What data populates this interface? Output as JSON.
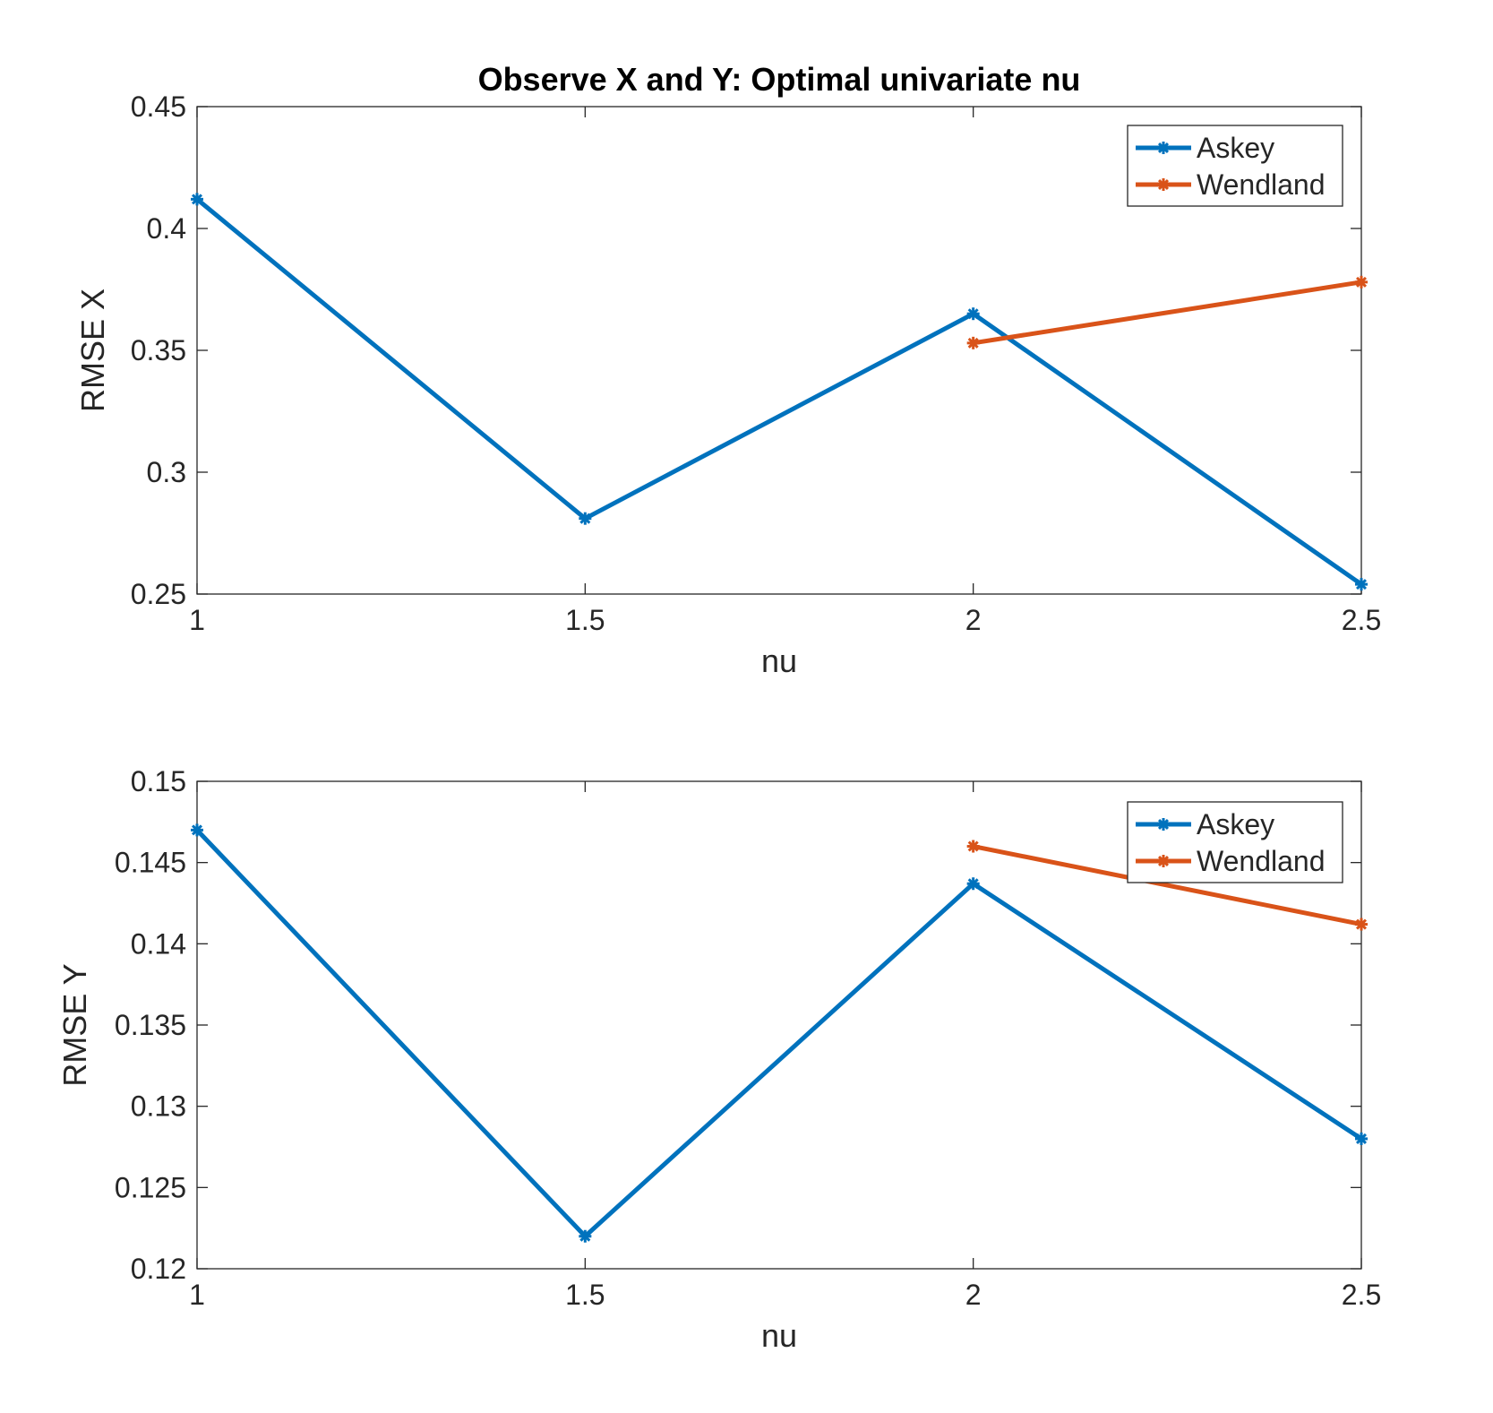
{
  "chart_data": [
    {
      "type": "line",
      "title": "Observe X and Y: Optimal univariate nu",
      "xlabel": "nu",
      "ylabel": "RMSE X",
      "xlim": [
        1,
        2.5
      ],
      "ylim": [
        0.25,
        0.45
      ],
      "xticks": [
        "1",
        "1.5",
        "2",
        "2.5"
      ],
      "yticks": [
        "0.25",
        "0.3",
        "0.35",
        "0.4",
        "0.45"
      ],
      "grid": false,
      "legend_position": "top-right",
      "series": [
        {
          "name": "Askey",
          "color": "#0072BD",
          "x": [
            1,
            1.5,
            2,
            2.5
          ],
          "y": [
            0.412,
            0.281,
            0.365,
            0.254
          ]
        },
        {
          "name": "Wendland",
          "color": "#D95319",
          "x": [
            2,
            2.5
          ],
          "y": [
            0.353,
            0.378
          ]
        }
      ]
    },
    {
      "type": "line",
      "title": "",
      "xlabel": "nu",
      "ylabel": "RMSE Y",
      "xlim": [
        1,
        2.5
      ],
      "ylim": [
        0.12,
        0.15
      ],
      "xticks": [
        "1",
        "1.5",
        "2",
        "2.5"
      ],
      "yticks": [
        "0.12",
        "0.125",
        "0.13",
        "0.135",
        "0.14",
        "0.145",
        "0.15"
      ],
      "grid": false,
      "legend_position": "top-right",
      "series": [
        {
          "name": "Askey",
          "color": "#0072BD",
          "x": [
            1,
            1.5,
            2,
            2.5
          ],
          "y": [
            0.147,
            0.122,
            0.1437,
            0.128
          ]
        },
        {
          "name": "Wendland",
          "color": "#D95319",
          "x": [
            2,
            2.5
          ],
          "y": [
            0.146,
            0.1412
          ]
        }
      ]
    }
  ]
}
